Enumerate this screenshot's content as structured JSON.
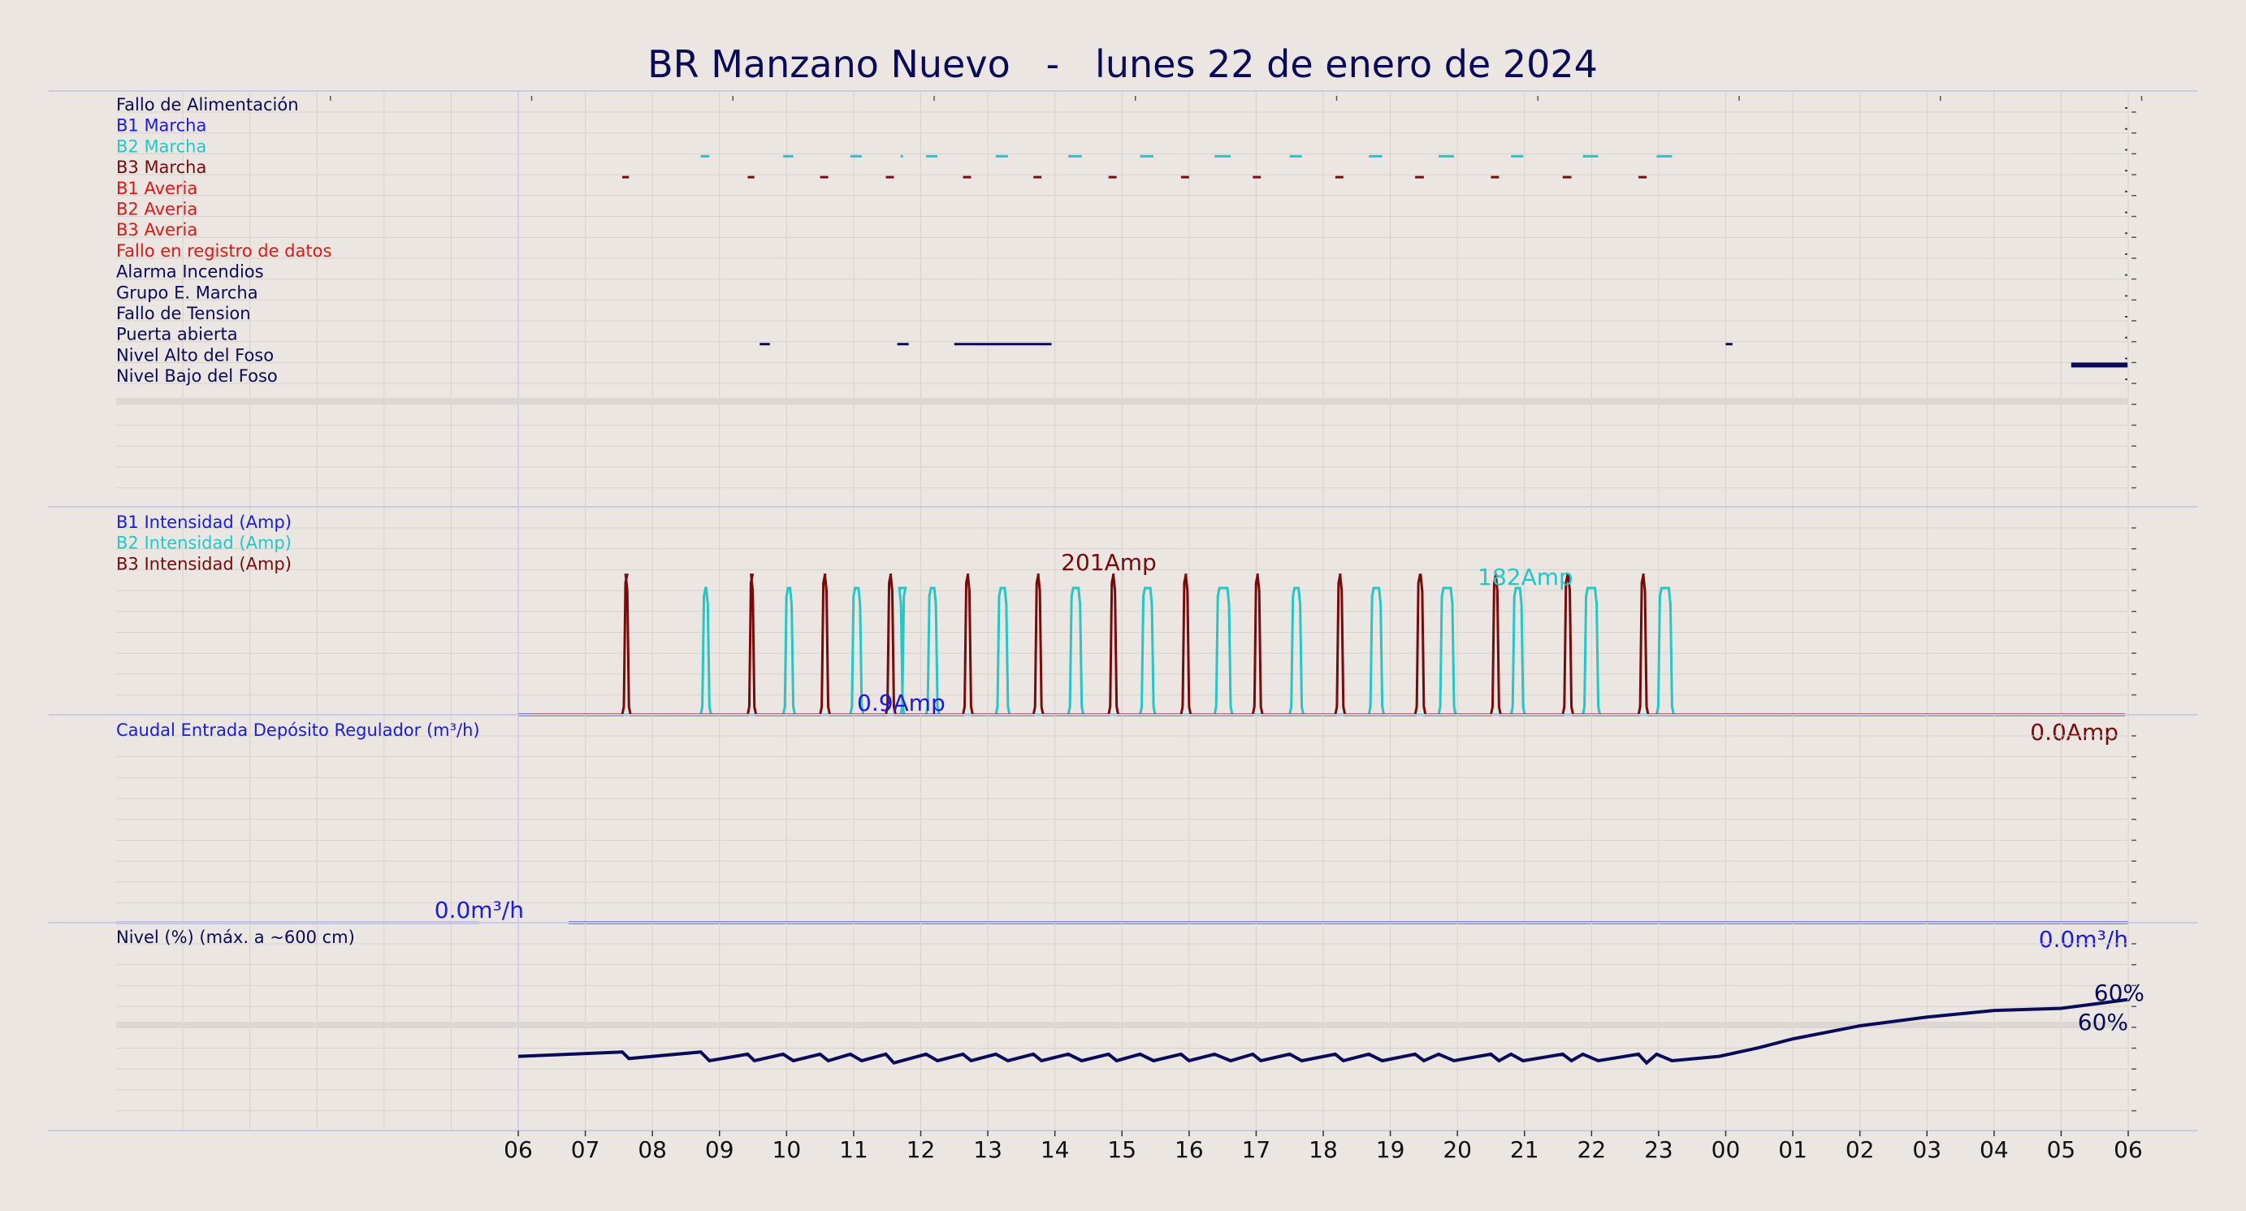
{
  "title": "BR Manzano Nuevo   -   lunes 22 de enero de 2024",
  "colors": {
    "background": "#ebe6e1",
    "navy": "#0a0a5a",
    "blue": "#1a1ae6",
    "cyan": "#20c8c8",
    "darkred": "#7a0a0a",
    "red": "#e61414",
    "grid": "#d6d1cc",
    "panel_border": "#c9c8e6"
  },
  "x_tick_labels": [
    "06",
    "07",
    "08",
    "09",
    "10",
    "11",
    "12",
    "13",
    "14",
    "15",
    "16",
    "17",
    "18",
    "19",
    "20",
    "21",
    "22",
    "23",
    "00",
    "01",
    "02",
    "03",
    "04",
    "05",
    "06"
  ],
  "chart_data": [
    {
      "type": "line",
      "panel": "digital-signals",
      "x_unit": "hours since 06:00 on 22 Jan 2024",
      "xlim": [
        0,
        24
      ],
      "signals": [
        {
          "label": "Fallo de Alimentación",
          "color": "#0a0a5a",
          "segments": []
        },
        {
          "label": "B1 Marcha",
          "color": "#1a1ae6",
          "segments": []
        },
        {
          "label": "B2 Marcha",
          "color": "#20c8c8",
          "segments": [
            [
              2.72,
              2.85
            ],
            [
              3.95,
              4.1
            ],
            [
              4.95,
              5.12
            ],
            [
              5.7,
              5.73
            ],
            [
              6.08,
              6.25
            ],
            [
              7.12,
              7.3
            ],
            [
              8.2,
              8.4
            ],
            [
              9.27,
              9.47
            ],
            [
              10.38,
              10.62
            ],
            [
              11.5,
              11.68
            ],
            [
              12.68,
              12.88
            ],
            [
              13.72,
              13.95
            ],
            [
              14.8,
              14.98
            ],
            [
              15.87,
              16.1
            ],
            [
              16.97,
              17.2
            ]
          ]
        },
        {
          "label": "B3 Marcha",
          "color": "#7a0a0a",
          "segments": [
            [
              1.55,
              1.65
            ],
            [
              3.42,
              3.52
            ],
            [
              4.5,
              4.62
            ],
            [
              5.48,
              5.6
            ],
            [
              6.63,
              6.75
            ],
            [
              7.68,
              7.8
            ],
            [
              8.8,
              8.92
            ],
            [
              9.88,
              10.0
            ],
            [
              10.95,
              11.07
            ],
            [
              12.18,
              12.3
            ],
            [
              13.37,
              13.5
            ],
            [
              14.5,
              14.62
            ],
            [
              15.57,
              15.7
            ],
            [
              16.7,
              16.82
            ]
          ]
        },
        {
          "label": "B1 Averia",
          "color": "#e61414",
          "segments": []
        },
        {
          "label": "B2 Averia",
          "color": "#e61414",
          "segments": []
        },
        {
          "label": "B3 Averia",
          "color": "#e61414",
          "segments": []
        },
        {
          "label": "Fallo en registro de datos",
          "color": "#e61414",
          "segments": []
        },
        {
          "label": "Alarma Incendios",
          "color": "#0a0a5a",
          "segments": []
        },
        {
          "label": "Grupo E. Marcha",
          "color": "#0a0a5a",
          "segments": []
        },
        {
          "label": "Fallo de Tension",
          "color": "#0a0a5a",
          "segments": []
        },
        {
          "label": "Puerta abierta",
          "color": "#0a0a5a",
          "segments": [
            [
              3.6,
              3.75
            ],
            [
              5.65,
              5.82
            ],
            [
              6.5,
              7.95
            ],
            [
              18.0,
              18.1
            ]
          ]
        },
        {
          "label": "Nivel Alto del Foso",
          "color": "#0a0a5a",
          "segments": [
            [
              23.15,
              23.99
            ]
          ]
        },
        {
          "label": "Nivel Bajo del Foso",
          "color": "#0a0a5a",
          "segments": []
        }
      ]
    },
    {
      "type": "line",
      "panel": "pump-current",
      "x_unit": "hours since 06:00 on 22 Jan 2024",
      "xlim": [
        0,
        24
      ],
      "ylim": [
        0,
        210
      ],
      "series": [
        {
          "name": "B1 Intensidad (Amp)",
          "color": "#1a1ae6",
          "pulses": [],
          "max_label": "0.9Amp",
          "end_label": ""
        },
        {
          "name": "B2 Intensidad (Amp)",
          "color": "#20c8c8",
          "peak": 182,
          "max_label": "182Amp",
          "end_label": "",
          "pulses": [
            [
              2.72,
              2.85
            ],
            [
              3.95,
              4.1
            ],
            [
              4.95,
              5.12
            ],
            [
              5.7,
              5.73
            ],
            [
              6.08,
              6.25
            ],
            [
              7.12,
              7.3
            ],
            [
              8.2,
              8.4
            ],
            [
              9.27,
              9.47
            ],
            [
              10.38,
              10.62
            ],
            [
              11.5,
              11.68
            ],
            [
              12.68,
              12.88
            ],
            [
              13.72,
              13.95
            ],
            [
              14.8,
              14.98
            ],
            [
              15.87,
              16.1
            ],
            [
              16.97,
              17.2
            ]
          ]
        },
        {
          "name": "B3 Intensidad (Amp)",
          "color": "#7a0a0a",
          "peak": 201,
          "max_label": "201Amp",
          "end_label": "0.0Amp",
          "pulses": [
            [
              1.55,
              1.65
            ],
            [
              3.42,
              3.52
            ],
            [
              4.5,
              4.62
            ],
            [
              5.48,
              5.6
            ],
            [
              6.63,
              6.75
            ],
            [
              7.68,
              7.8
            ],
            [
              8.8,
              8.92
            ],
            [
              9.88,
              10.0
            ],
            [
              10.95,
              11.07
            ],
            [
              12.18,
              12.3
            ],
            [
              13.37,
              13.5
            ],
            [
              14.5,
              14.62
            ],
            [
              15.57,
              15.7
            ],
            [
              16.7,
              16.82
            ]
          ]
        }
      ]
    },
    {
      "type": "line",
      "panel": "inflow",
      "x_unit": "hours since 06:00 on 22 Jan 2024",
      "xlim": [
        0,
        24
      ],
      "ylim": [
        0,
        100
      ],
      "series": [
        {
          "name": "Caudal Entrada Depósito Regulador (m³/h)",
          "color": "#1a1ae6",
          "value": 0.0,
          "start_label": "0.0m³/h",
          "end_label": "0.0m³/h"
        }
      ]
    },
    {
      "type": "line",
      "panel": "level",
      "x_unit": "hours since 06:00 on 22 Jan 2024",
      "xlim": [
        0,
        24
      ],
      "ylim": [
        0,
        100
      ],
      "series": [
        {
          "name": "Nivel (%) (máx. a ~600 cm)",
          "color": "#0a0a5a",
          "max_label": "60%",
          "end_label": "60%",
          "points": [
            [
              0,
              34
            ],
            [
              1.55,
              36
            ],
            [
              1.65,
              33
            ],
            [
              2.72,
              36
            ],
            [
              2.85,
              32
            ],
            [
              3.42,
              35
            ],
            [
              3.52,
              32
            ],
            [
              3.95,
              35
            ],
            [
              4.1,
              32
            ],
            [
              4.5,
              35
            ],
            [
              4.62,
              32
            ],
            [
              4.95,
              35
            ],
            [
              5.12,
              32
            ],
            [
              5.48,
              35
            ],
            [
              5.6,
              31
            ],
            [
              6.08,
              35
            ],
            [
              6.25,
              32
            ],
            [
              6.63,
              35
            ],
            [
              6.75,
              32
            ],
            [
              7.12,
              35
            ],
            [
              7.3,
              32
            ],
            [
              7.68,
              35
            ],
            [
              7.8,
              32
            ],
            [
              8.2,
              35
            ],
            [
              8.4,
              32
            ],
            [
              8.8,
              35
            ],
            [
              8.92,
              32
            ],
            [
              9.27,
              35
            ],
            [
              9.47,
              32
            ],
            [
              9.88,
              35
            ],
            [
              10.0,
              32
            ],
            [
              10.38,
              35
            ],
            [
              10.62,
              32
            ],
            [
              10.95,
              35
            ],
            [
              11.07,
              32
            ],
            [
              11.5,
              35
            ],
            [
              11.68,
              32
            ],
            [
              12.18,
              35
            ],
            [
              12.3,
              32
            ],
            [
              12.68,
              35
            ],
            [
              12.88,
              32
            ],
            [
              13.37,
              35
            ],
            [
              13.5,
              32
            ],
            [
              13.72,
              35
            ],
            [
              13.95,
              32
            ],
            [
              14.5,
              35
            ],
            [
              14.62,
              32
            ],
            [
              14.8,
              35
            ],
            [
              14.98,
              32
            ],
            [
              15.57,
              35
            ],
            [
              15.7,
              32
            ],
            [
              15.87,
              35
            ],
            [
              16.1,
              32
            ],
            [
              16.7,
              35
            ],
            [
              16.82,
              31
            ],
            [
              16.97,
              35
            ],
            [
              17.2,
              32
            ],
            [
              17.9,
              34
            ],
            [
              18.5,
              38
            ],
            [
              19.0,
              42
            ],
            [
              20.0,
              48
            ],
            [
              21.0,
              52
            ],
            [
              22.0,
              55
            ],
            [
              23.0,
              56
            ],
            [
              23.5,
              58
            ],
            [
              23.99,
              60
            ]
          ]
        }
      ]
    }
  ]
}
